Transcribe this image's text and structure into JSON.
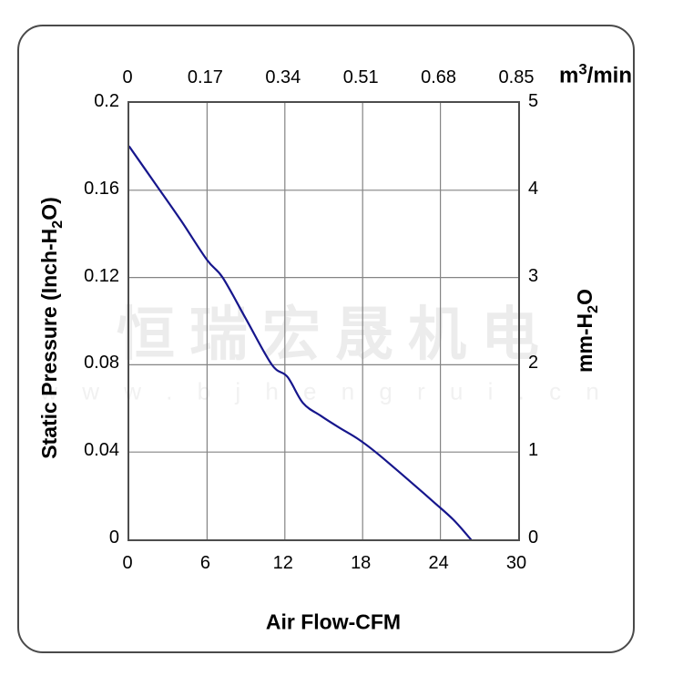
{
  "watermark": {
    "company": "恒瑞宏晟机电",
    "url": "w w w . b j h e n g r u i . c n"
  },
  "labels": {
    "left_axis": {
      "pre": "Static Pressure (Inch-H",
      "sub": "2",
      "post": "O)"
    },
    "right_axis": {
      "pre": "mm-H",
      "sub": "2",
      "post": "O"
    },
    "top_unit": {
      "pre": "m",
      "sup": "3",
      "post": "/min"
    },
    "bottom_axis": "Air Flow-CFM"
  },
  "colors": {
    "curve": "#16168c",
    "grid": "#848484",
    "frame": "#4d4d4d",
    "border": "#4a4a4a",
    "watermark_cn": "#ececec",
    "watermark_url": "#f1f1f1"
  },
  "chart_data": {
    "type": "line",
    "title": "Fan static pressure vs air flow performance curve",
    "x_bottom": {
      "label": "Air Flow-CFM",
      "ticks": [
        "0",
        "6",
        "12",
        "18",
        "24",
        "30"
      ],
      "range": [
        0,
        30
      ]
    },
    "x_top": {
      "unit": "m3/min",
      "ticks": [
        "0",
        "0.17",
        "0.34",
        "0.51",
        "0.68",
        "0.85"
      ],
      "range": [
        0,
        0.85
      ]
    },
    "y_left": {
      "label": "Static Pressure (Inch-H2O)",
      "ticks": [
        "0.2",
        "0.16",
        "0.12",
        "0.08",
        "0.04",
        "0"
      ],
      "range": [
        0,
        0.2
      ]
    },
    "y_right": {
      "unit": "mm-H2O",
      "ticks": [
        "5",
        "4",
        "3",
        "2",
        "1",
        "0"
      ],
      "range": [
        0,
        5
      ]
    },
    "grid": true,
    "legend": "none",
    "series": [
      {
        "name": "static-pressure-curve",
        "x_unit": "CFM",
        "y_unit": "Inch-H2O",
        "points": [
          [
            0,
            0.18
          ],
          [
            2,
            0.163
          ],
          [
            4,
            0.146
          ],
          [
            6,
            0.128
          ],
          [
            7.2,
            0.12
          ],
          [
            9,
            0.101
          ],
          [
            11,
            0.08
          ],
          [
            12.2,
            0.0745
          ],
          [
            13.4,
            0.0625
          ],
          [
            14.8,
            0.0565
          ],
          [
            16.2,
            0.0512
          ],
          [
            17.6,
            0.0462
          ],
          [
            19,
            0.04
          ],
          [
            20.5,
            0.0325
          ],
          [
            22,
            0.0248
          ],
          [
            23.5,
            0.017
          ],
          [
            25,
            0.009
          ],
          [
            26.35,
            0
          ]
        ]
      }
    ]
  }
}
